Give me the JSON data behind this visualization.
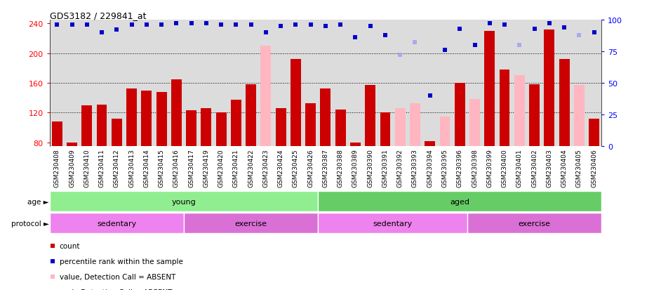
{
  "title": "GDS3182 / 229841_at",
  "samples": [
    "GSM230408",
    "GSM230409",
    "GSM230410",
    "GSM230411",
    "GSM230412",
    "GSM230413",
    "GSM230414",
    "GSM230415",
    "GSM230416",
    "GSM230417",
    "GSM230419",
    "GSM230420",
    "GSM230421",
    "GSM230422",
    "GSM230423",
    "GSM230424",
    "GSM230425",
    "GSM230426",
    "GSM230387",
    "GSM230388",
    "GSM230389",
    "GSM230390",
    "GSM230391",
    "GSM230392",
    "GSM230393",
    "GSM230394",
    "GSM230395",
    "GSM230396",
    "GSM230398",
    "GSM230399",
    "GSM230400",
    "GSM230401",
    "GSM230402",
    "GSM230403",
    "GSM230404",
    "GSM230405",
    "GSM230406"
  ],
  "values": [
    108,
    80,
    130,
    131,
    112,
    152,
    150,
    148,
    165,
    123,
    126,
    120,
    137,
    158,
    210,
    126,
    192,
    133,
    152,
    124,
    80,
    157,
    120,
    126,
    133,
    82,
    115,
    160,
    138,
    230,
    178,
    170,
    158,
    232,
    192,
    157,
    112
  ],
  "absent_mask": [
    false,
    false,
    false,
    false,
    false,
    false,
    false,
    false,
    false,
    false,
    false,
    false,
    false,
    false,
    true,
    false,
    false,
    false,
    false,
    false,
    false,
    false,
    false,
    true,
    true,
    false,
    true,
    false,
    true,
    false,
    false,
    true,
    false,
    false,
    false,
    true,
    false
  ],
  "percentile_ranks": [
    96,
    96,
    96,
    90,
    92,
    96,
    96,
    96,
    97,
    97,
    97,
    96,
    96,
    96,
    90,
    95,
    96,
    96,
    95,
    96,
    86,
    95,
    88,
    72,
    82,
    40,
    76,
    93,
    80,
    97,
    96,
    80,
    93,
    97,
    94,
    88,
    90
  ],
  "absent_rank_mask": [
    false,
    false,
    false,
    false,
    false,
    false,
    false,
    false,
    false,
    false,
    false,
    false,
    false,
    false,
    false,
    false,
    false,
    false,
    false,
    false,
    false,
    false,
    false,
    true,
    true,
    false,
    false,
    false,
    false,
    false,
    false,
    true,
    false,
    false,
    false,
    true,
    false
  ],
  "ylim_left": [
    75,
    245
  ],
  "ylim_right": [
    0,
    100
  ],
  "yticks_left": [
    80,
    120,
    160,
    200,
    240
  ],
  "yticks_right": [
    0,
    25,
    50,
    75,
    100
  ],
  "bar_color_present": "#CC0000",
  "bar_color_absent": "#FFB6C1",
  "dot_color_present": "#0000CC",
  "dot_color_absent": "#AAAAEE",
  "background_color": "#DCDCDC",
  "age_groups": [
    {
      "label": "young",
      "start": 0,
      "end": 18,
      "color": "#90EE90"
    },
    {
      "label": "aged",
      "start": 18,
      "end": 37,
      "color": "#66CC66"
    }
  ],
  "protocol_groups": [
    {
      "label": "sedentary",
      "start": 0,
      "end": 9,
      "color": "#EE82EE"
    },
    {
      "label": "exercise",
      "start": 9,
      "end": 18,
      "color": "#DA70D6"
    },
    {
      "label": "sedentary",
      "start": 18,
      "end": 28,
      "color": "#EE82EE"
    },
    {
      "label": "exercise",
      "start": 28,
      "end": 37,
      "color": "#DA70D6"
    }
  ],
  "legend_items": [
    {
      "color": "#CC0000",
      "marker": "s",
      "label": "count"
    },
    {
      "color": "#0000CC",
      "marker": "s",
      "label": "percentile rank within the sample"
    },
    {
      "color": "#FFB6C1",
      "marker": "s",
      "label": "value, Detection Call = ABSENT"
    },
    {
      "color": "#AAAAEE",
      "marker": "s",
      "label": "rank, Detection Call = ABSENT"
    }
  ]
}
